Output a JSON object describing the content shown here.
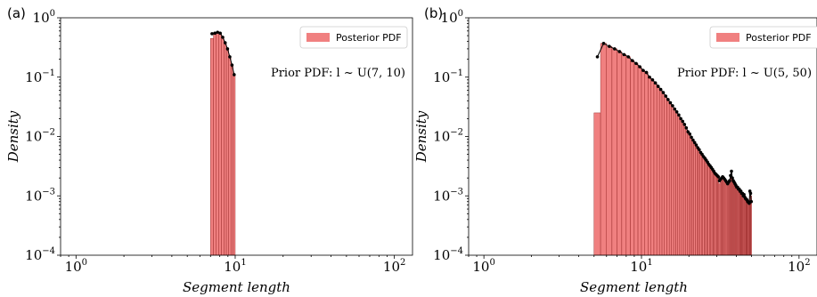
{
  "chart_data": [
    {
      "panel_label": "(a)",
      "type": "bar",
      "xscale": "log",
      "yscale": "log",
      "xlim": [
        0.8,
        130
      ],
      "ylim": [
        0.0001,
        1
      ],
      "xlabel": "Segment length",
      "ylabel": "Density",
      "x_ticks": [
        {
          "base": "10",
          "exp": "0"
        },
        {
          "base": "10",
          "exp": "1"
        },
        {
          "base": "10",
          "exp": "2"
        }
      ],
      "y_ticks": [
        {
          "base": "10",
          "exp": "0"
        },
        {
          "base": "10",
          "exp": "−1"
        },
        {
          "base": "10",
          "exp": "−2"
        },
        {
          "base": "10",
          "exp": "−3"
        },
        {
          "base": "10",
          "exp": "−4"
        }
      ],
      "legend": {
        "label": "Posterior PDF",
        "position": "top-right"
      },
      "annotation": "Prior PDF: l ~ U(7, 10)",
      "series": [
        {
          "kind": "histogram",
          "bin_edges": [
            7.0,
            7.3,
            7.6,
            7.9,
            8.2,
            8.5,
            8.8,
            9.1,
            9.4,
            9.7,
            10.0
          ],
          "values": [
            0.45,
            0.55,
            0.57,
            0.55,
            0.47,
            0.38,
            0.3,
            0.22,
            0.16,
            0.11
          ],
          "color": "#f08080",
          "edge_color": "#8b1a1a"
        },
        {
          "kind": "line-with-markers",
          "x": [
            7.15,
            7.45,
            7.75,
            8.05,
            8.35,
            8.65,
            8.95,
            9.25,
            9.55,
            9.85
          ],
          "y": [
            0.54,
            0.55,
            0.57,
            0.55,
            0.47,
            0.38,
            0.3,
            0.22,
            0.16,
            0.11
          ],
          "color": "#000000"
        }
      ]
    },
    {
      "panel_label": "(b)",
      "type": "bar",
      "xscale": "log",
      "yscale": "log",
      "xlim": [
        0.8,
        130
      ],
      "ylim": [
        0.0001,
        1
      ],
      "xlabel": "Segment length",
      "ylabel": "Density",
      "x_ticks": [
        {
          "base": "10",
          "exp": "0"
        },
        {
          "base": "10",
          "exp": "1"
        },
        {
          "base": "10",
          "exp": "2"
        }
      ],
      "y_ticks": [
        {
          "base": "10",
          "exp": "0"
        },
        {
          "base": "10",
          "exp": "−1"
        },
        {
          "base": "10",
          "exp": "−2"
        },
        {
          "base": "10",
          "exp": "−3"
        },
        {
          "base": "10",
          "exp": "−4"
        }
      ],
      "legend": {
        "label": "Posterior PDF",
        "position": "top-right"
      },
      "annotation": "Prior PDF: l ~ U(5, 50)",
      "series": [
        {
          "kind": "histogram",
          "bin_start": 5.0,
          "bin_width": 0.5,
          "values": [
            0.025,
            0.37,
            0.33,
            0.3,
            0.27,
            0.24,
            0.22,
            0.19,
            0.17,
            0.15,
            0.13,
            0.12,
            0.1,
            0.09,
            0.08,
            0.07,
            0.062,
            0.055,
            0.048,
            0.042,
            0.037,
            0.033,
            0.029,
            0.026,
            0.023,
            0.02,
            0.018,
            0.016,
            0.014,
            0.012,
            0.011,
            0.0097,
            0.0087,
            0.0079,
            0.0072,
            0.0065,
            0.006,
            0.0054,
            0.005,
            0.0046,
            0.0043,
            0.004,
            0.0037,
            0.0034,
            0.0032,
            0.003,
            0.0028,
            0.0026,
            0.0024,
            0.0023,
            0.0022,
            0.0021,
            0.0016,
            0.0019,
            0.002,
            0.0021,
            0.002,
            0.0019,
            0.0018,
            0.0017,
            0.0016,
            0.0017,
            0.0018,
            0.0022,
            0.0026,
            0.002,
            0.0018,
            0.0017,
            0.0016,
            0.0015,
            0.0014,
            0.0014,
            0.0013,
            0.0013,
            0.0012,
            0.0012,
            0.0011,
            0.0011,
            0.001,
            0.00105,
            0.00095,
            0.0009,
            0.00088,
            0.00085,
            0.0008,
            0.00078,
            0.00075,
            0.0012,
            0.0011,
            0.001
          ],
          "color": "#f08080",
          "edge_color": "#8b1a1a"
        },
        {
          "kind": "line-with-markers",
          "x_start": 5.25,
          "x_step": 0.5,
          "y": [
            0.22,
            0.37,
            0.33,
            0.3,
            0.27,
            0.24,
            0.22,
            0.19,
            0.17,
            0.15,
            0.13,
            0.12,
            0.1,
            0.09,
            0.08,
            0.07,
            0.062,
            0.055,
            0.048,
            0.042,
            0.037,
            0.033,
            0.029,
            0.026,
            0.023,
            0.02,
            0.018,
            0.016,
            0.014,
            0.012,
            0.011,
            0.0097,
            0.0087,
            0.0079,
            0.0072,
            0.0065,
            0.006,
            0.0054,
            0.005,
            0.0046,
            0.0043,
            0.004,
            0.0037,
            0.0034,
            0.0032,
            0.003,
            0.0028,
            0.0026,
            0.0024,
            0.0023,
            0.0022,
            0.0021,
            0.0018,
            0.0019,
            0.002,
            0.0021,
            0.002,
            0.0019,
            0.0018,
            0.0017,
            0.0016,
            0.0017,
            0.0018,
            0.0022,
            0.0026,
            0.002,
            0.0018,
            0.0017,
            0.0016,
            0.0015,
            0.0014,
            0.0014,
            0.0013,
            0.0013,
            0.0012,
            0.0012,
            0.0011,
            0.0011,
            0.001,
            0.00105,
            0.00095,
            0.0009,
            0.00088,
            0.00085,
            0.0008,
            0.00078,
            0.00075,
            0.0012,
            0.0011,
            0.0008
          ],
          "color": "#000000"
        }
      ]
    }
  ]
}
